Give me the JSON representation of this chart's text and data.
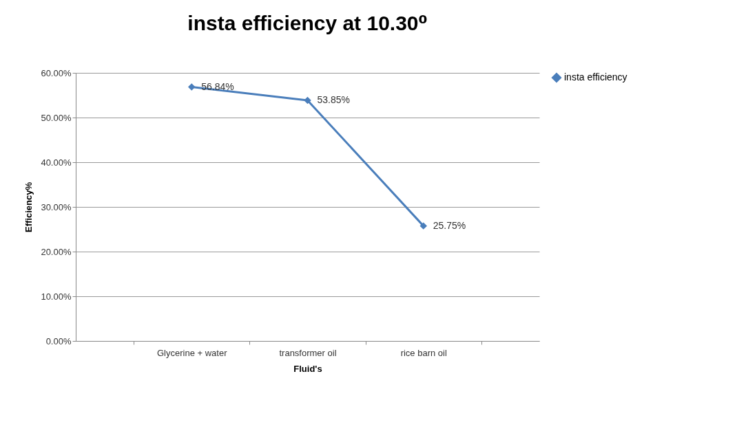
{
  "chart_data": {
    "type": "line",
    "title": "insta efficiency at 10.30⁰",
    "xlabel": "Fluid's",
    "ylabel": "Efficiency%",
    "categories": [
      "Glycerine + water",
      "transformer oil",
      "rice barn oil"
    ],
    "series": [
      {
        "name": "insta efficiency",
        "color": "#4a7ebb",
        "values": [
          56.84,
          53.85,
          25.75
        ],
        "value_labels": [
          "56.84%",
          "53.85%",
          "25.75%"
        ]
      }
    ],
    "ylim": [
      0,
      60
    ],
    "yticks": [
      {
        "value": 0,
        "label": "0.00%"
      },
      {
        "value": 10,
        "label": "10.00%"
      },
      {
        "value": 20,
        "label": "20.00%"
      },
      {
        "value": 30,
        "label": "30.00%"
      },
      {
        "value": 40,
        "label": "40.00%"
      },
      {
        "value": 50,
        "label": "50.00%"
      },
      {
        "value": 60,
        "label": "60.00%"
      }
    ],
    "grid": "y",
    "legend": "right",
    "marker": "diamond",
    "line_style": "solid"
  }
}
